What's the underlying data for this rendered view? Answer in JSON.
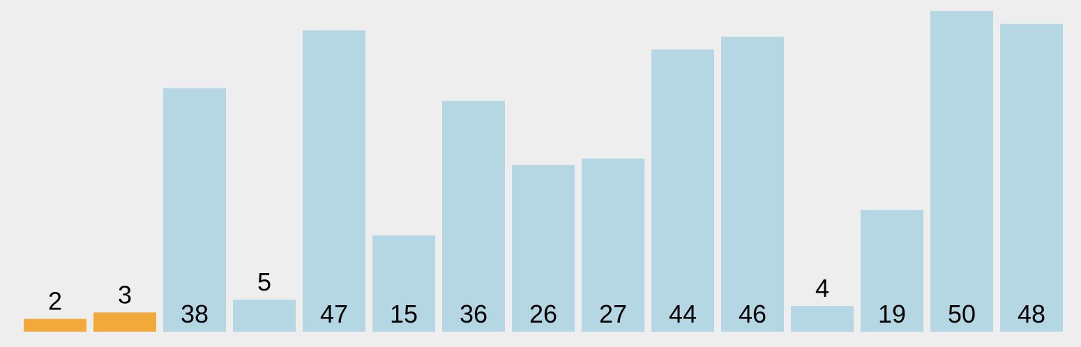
{
  "chart_data": {
    "type": "bar",
    "values": [
      2,
      3,
      38,
      5,
      47,
      15,
      36,
      26,
      27,
      44,
      46,
      4,
      19,
      50,
      48
    ],
    "highlighted_indices": [
      0,
      1
    ],
    "ylim": [
      0,
      50
    ],
    "grid": false,
    "colors": {
      "background": "#eeeeee",
      "bar": "#b4d7e3",
      "highlight": "#f2a93b",
      "label": "#000000"
    }
  }
}
